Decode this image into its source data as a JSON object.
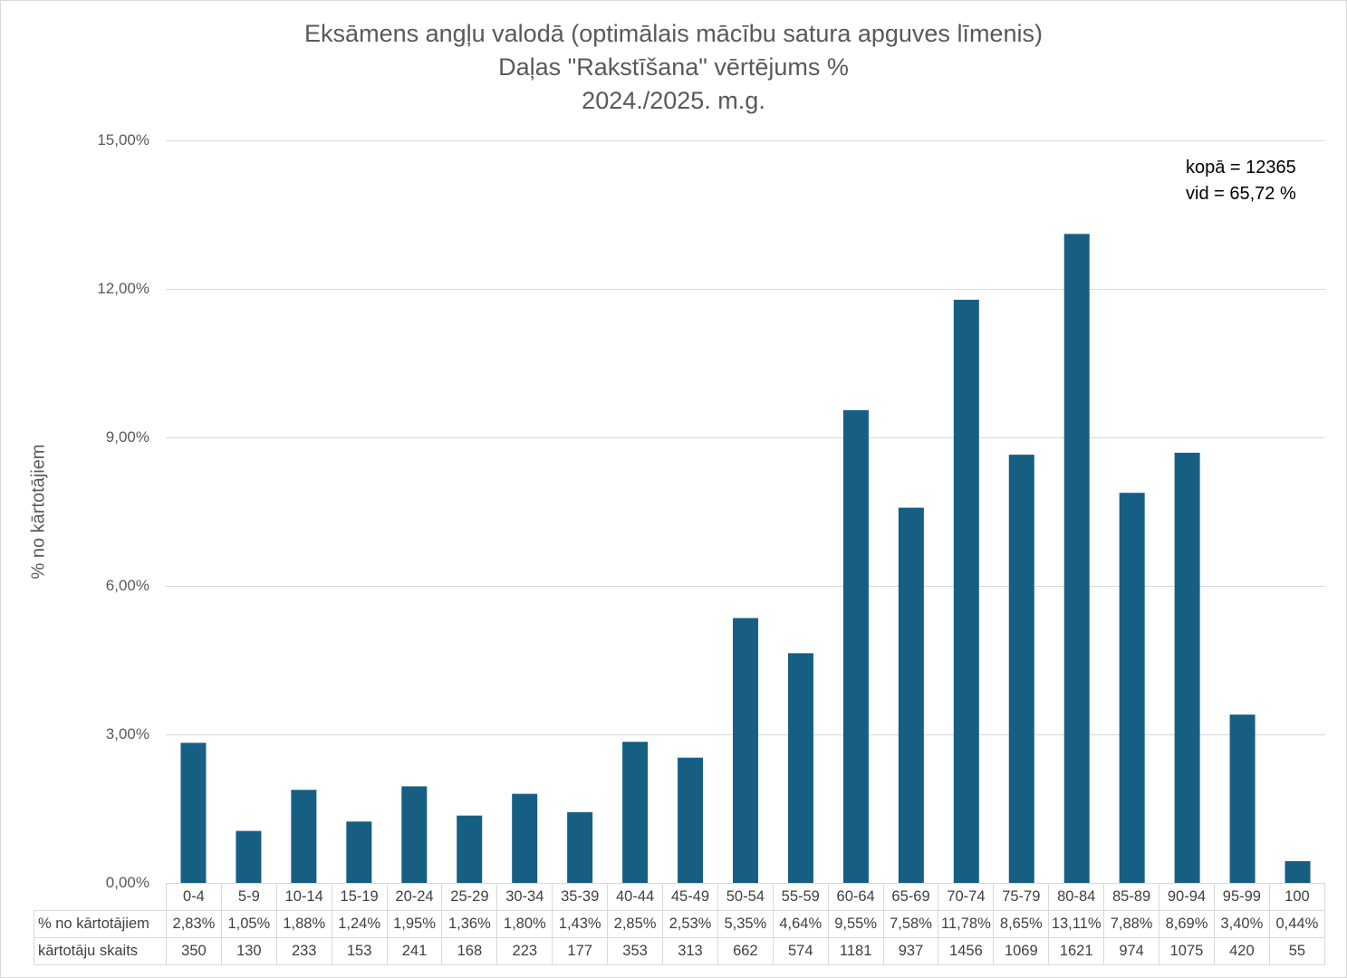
{
  "chart_data": {
    "type": "bar",
    "title": "Eksāmens angļu valodā (optimālais mācību satura apguves līmenis)",
    "subtitle": [
      "Daļas \"Rakstīšana\" vērtējums %",
      "2024./2025. m.g."
    ],
    "xlabel": "",
    "ylabel": "% no kārtotājiem",
    "ylim": [
      0,
      15
    ],
    "y_ticks": [
      "0,00%",
      "3,00%",
      "6,00%",
      "9,00%",
      "12,00%",
      "15,00%"
    ],
    "grid": true,
    "bar_color": "#175e83",
    "categories": [
      "0-4",
      "5-9",
      "10-14",
      "15-19",
      "20-24",
      "25-29",
      "30-34",
      "35-39",
      "40-44",
      "45-49",
      "50-54",
      "55-59",
      "60-64",
      "65-69",
      "70-74",
      "75-79",
      "80-84",
      "85-89",
      "90-94",
      "95-99",
      "100"
    ],
    "values": [
      2.83,
      1.05,
      1.88,
      1.24,
      1.95,
      1.36,
      1.8,
      1.43,
      2.85,
      2.53,
      5.35,
      4.64,
      9.55,
      7.58,
      11.78,
      8.65,
      13.11,
      7.88,
      8.69,
      3.4,
      0.44
    ],
    "annotations": [
      "kopā = 12365",
      "vid = 65,72 %"
    ],
    "table": {
      "rows": [
        {
          "label": "% no kārtotājiem",
          "cells": [
            "2,83%",
            "1,05%",
            "1,88%",
            "1,24%",
            "1,95%",
            "1,36%",
            "1,80%",
            "1,43%",
            "2,85%",
            "2,53%",
            "5,35%",
            "4,64%",
            "9,55%",
            "7,58%",
            "11,78%",
            "8,65%",
            "13,11%",
            "7,88%",
            "8,69%",
            "3,40%",
            "0,44%"
          ]
        },
        {
          "label": "kārtotāju skaits",
          "cells": [
            "350",
            "130",
            "233",
            "153",
            "241",
            "168",
            "223",
            "177",
            "353",
            "313",
            "662",
            "574",
            "1181",
            "937",
            "1456",
            "1069",
            "1621",
            "974",
            "1075",
            "420",
            "55"
          ]
        }
      ]
    }
  }
}
